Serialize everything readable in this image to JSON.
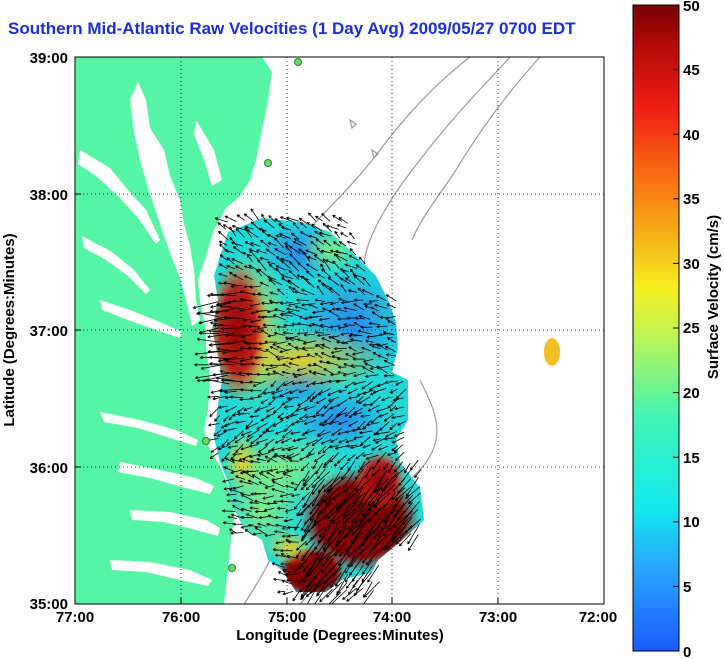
{
  "title": "Southern Mid-Atlantic Raw Velocities (1 Day Avg) 2009/05/27 0700 EDT",
  "xlabel": "Longitude (Degrees:Minutes)",
  "ylabel": "Latitude (Degrees:Minutes)",
  "x_ticks": [
    "77:00",
    "76:00",
    "75:00",
    "74:00",
    "73:00",
    "72:00"
  ],
  "y_ticks": [
    "39:00",
    "38:00",
    "37:00",
    "36:00",
    "35:00"
  ],
  "colorbar": {
    "label": "Surface Velocity (cm/s)",
    "ticks": [
      "50",
      "45",
      "40",
      "35",
      "30",
      "25",
      "20",
      "15",
      "10",
      "5",
      "0"
    ],
    "range": [
      0,
      50
    ]
  },
  "colors": {
    "land": "#55f5a5",
    "water": "#ffffff",
    "title": "#1a2fd6",
    "arrow": "#000000",
    "bathymetry": "#9a9a9a"
  },
  "extent": {
    "lon": [
      -77,
      -72
    ],
    "lat": [
      35,
      39
    ]
  }
}
